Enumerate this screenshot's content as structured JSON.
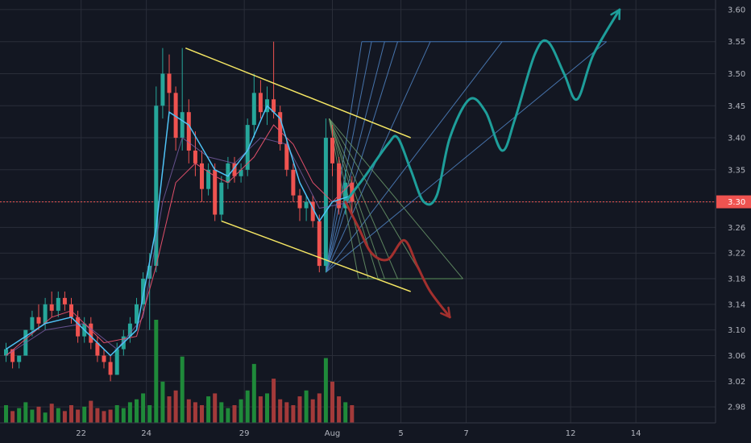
{
  "chart_data": {
    "type": "candlestick",
    "title": "",
    "xlabel": "",
    "ylabel": "",
    "ylim": [
      2.955,
      3.615
    ],
    "x_ticks": [
      "22",
      "24",
      "29",
      "Aug",
      "5",
      "7",
      "12",
      "14"
    ],
    "y_ticks": [
      "2.98",
      "3.02",
      "3.06",
      "3.10",
      "3.14",
      "3.18",
      "3.22",
      "3.26",
      "3.30",
      "3.35",
      "3.40",
      "3.45",
      "3.50",
      "3.55",
      "3.60"
    ],
    "grid": true,
    "current_price": {
      "label": "3.30",
      "value": 3.3
    },
    "candles": [
      [
        3.06,
        3.08,
        3.05,
        3.07
      ],
      [
        3.07,
        3.07,
        3.04,
        3.05
      ],
      [
        3.05,
        3.06,
        3.04,
        3.06
      ],
      [
        3.06,
        3.1,
        3.06,
        3.1
      ],
      [
        3.1,
        3.13,
        3.09,
        3.12
      ],
      [
        3.12,
        3.14,
        3.1,
        3.11
      ],
      [
        3.11,
        3.15,
        3.1,
        3.14
      ],
      [
        3.14,
        3.16,
        3.12,
        3.13
      ],
      [
        3.13,
        3.16,
        3.12,
        3.15
      ],
      [
        3.15,
        3.16,
        3.13,
        3.14
      ],
      [
        3.14,
        3.15,
        3.11,
        3.12
      ],
      [
        3.12,
        3.13,
        3.08,
        3.09
      ],
      [
        3.09,
        3.12,
        3.08,
        3.11
      ],
      [
        3.11,
        3.12,
        3.07,
        3.08
      ],
      [
        3.08,
        3.09,
        3.05,
        3.06
      ],
      [
        3.06,
        3.07,
        3.04,
        3.05
      ],
      [
        3.05,
        3.06,
        3.02,
        3.03
      ],
      [
        3.03,
        3.08,
        3.03,
        3.07
      ],
      [
        3.07,
        3.1,
        3.06,
        3.09
      ],
      [
        3.09,
        3.12,
        3.08,
        3.11
      ],
      [
        3.11,
        3.15,
        3.1,
        3.14
      ],
      [
        3.14,
        3.19,
        3.13,
        3.18
      ],
      [
        3.18,
        3.22,
        3.1,
        3.2
      ],
      [
        3.2,
        3.48,
        3.19,
        3.45
      ],
      [
        3.45,
        3.54,
        3.43,
        3.5
      ],
      [
        3.5,
        3.53,
        3.44,
        3.47
      ],
      [
        3.47,
        3.48,
        3.38,
        3.4
      ],
      [
        3.4,
        3.54,
        3.38,
        3.44
      ],
      [
        3.44,
        3.46,
        3.36,
        3.38
      ],
      [
        3.38,
        3.41,
        3.34,
        3.36
      ],
      [
        3.36,
        3.38,
        3.3,
        3.32
      ],
      [
        3.32,
        3.36,
        3.31,
        3.35
      ],
      [
        3.35,
        3.36,
        3.27,
        3.28
      ],
      [
        3.28,
        3.34,
        3.27,
        3.33
      ],
      [
        3.33,
        3.37,
        3.32,
        3.36
      ],
      [
        3.36,
        3.37,
        3.33,
        3.34
      ],
      [
        3.34,
        3.36,
        3.33,
        3.35
      ],
      [
        3.35,
        3.43,
        3.34,
        3.42
      ],
      [
        3.42,
        3.5,
        3.4,
        3.47
      ],
      [
        3.47,
        3.49,
        3.43,
        3.44
      ],
      [
        3.44,
        3.48,
        3.42,
        3.46
      ],
      [
        3.46,
        3.55,
        3.43,
        3.44
      ],
      [
        3.44,
        3.45,
        3.38,
        3.39
      ],
      [
        3.39,
        3.4,
        3.34,
        3.35
      ],
      [
        3.35,
        3.36,
        3.3,
        3.31
      ],
      [
        3.31,
        3.32,
        3.27,
        3.29
      ],
      [
        3.29,
        3.31,
        3.27,
        3.3
      ],
      [
        3.3,
        3.31,
        3.26,
        3.27
      ],
      [
        3.27,
        3.28,
        3.19,
        3.2
      ],
      [
        3.2,
        3.43,
        3.19,
        3.4
      ],
      [
        3.4,
        3.42,
        3.34,
        3.36
      ],
      [
        3.36,
        3.37,
        3.28,
        3.29
      ],
      [
        3.29,
        3.35,
        3.28,
        3.33
      ],
      [
        3.33,
        3.34,
        3.28,
        3.3
      ]
    ],
    "volumes": [
      12,
      8,
      10,
      14,
      9,
      11,
      7,
      13,
      10,
      8,
      12,
      9,
      11,
      15,
      10,
      8,
      9,
      12,
      10,
      14,
      16,
      20,
      12,
      70,
      28,
      18,
      22,
      45,
      16,
      14,
      12,
      18,
      20,
      14,
      10,
      12,
      16,
      22,
      40,
      18,
      20,
      30,
      16,
      14,
      12,
      18,
      22,
      16,
      20,
      44,
      28,
      18,
      14,
      12
    ],
    "ma_fast": [
      [
        0,
        3.07
      ],
      [
        6,
        3.11
      ],
      [
        10,
        3.12
      ],
      [
        16,
        3.06
      ],
      [
        20,
        3.1
      ],
      [
        23,
        3.26
      ],
      [
        25,
        3.44
      ],
      [
        28,
        3.42
      ],
      [
        32,
        3.35
      ],
      [
        34,
        3.34
      ],
      [
        37,
        3.38
      ],
      [
        40,
        3.45
      ],
      [
        42,
        3.43
      ],
      [
        45,
        3.33
      ],
      [
        48,
        3.27
      ],
      [
        50,
        3.3
      ],
      [
        53,
        3.31
      ]
    ],
    "ma_slow": [
      [
        0,
        3.06
      ],
      [
        7,
        3.12
      ],
      [
        10,
        3.13
      ],
      [
        15,
        3.08
      ],
      [
        20,
        3.09
      ],
      [
        23,
        3.2
      ],
      [
        26,
        3.33
      ],
      [
        29,
        3.36
      ],
      [
        32,
        3.34
      ],
      [
        34,
        3.33
      ],
      [
        38,
        3.37
      ],
      [
        41,
        3.42
      ],
      [
        44,
        3.39
      ],
      [
        47,
        3.33
      ],
      [
        50,
        3.3
      ],
      [
        53,
        3.33
      ]
    ],
    "ma_light": [
      [
        0,
        3.06
      ],
      [
        6,
        3.1
      ],
      [
        12,
        3.11
      ],
      [
        17,
        3.07
      ],
      [
        21,
        3.12
      ],
      [
        24,
        3.3
      ],
      [
        27,
        3.4
      ],
      [
        31,
        3.37
      ],
      [
        35,
        3.36
      ],
      [
        39,
        3.4
      ],
      [
        43,
        3.39
      ],
      [
        48,
        3.29
      ],
      [
        53,
        3.3
      ]
    ],
    "channel_upper": [
      [
        27.5,
        3.54
      ],
      [
        62,
        3.4
      ]
    ],
    "channel_lower": [
      [
        33,
        3.27
      ],
      [
        62,
        3.16
      ]
    ],
    "forecast_up": [
      [
        52,
        3.3
      ],
      [
        55,
        3.34
      ],
      [
        58.5,
        3.39
      ],
      [
        60,
        3.4
      ],
      [
        62,
        3.35
      ],
      [
        64,
        3.3
      ],
      [
        66,
        3.31
      ],
      [
        68,
        3.4
      ],
      [
        71,
        3.46
      ],
      [
        73.5,
        3.44
      ],
      [
        76,
        3.38
      ],
      [
        78,
        3.43
      ],
      [
        81,
        3.53
      ],
      [
        83,
        3.55
      ],
      [
        85.5,
        3.5
      ],
      [
        87.5,
        3.46
      ],
      [
        90,
        3.53
      ],
      [
        94,
        3.6
      ]
    ],
    "forecast_down": [
      [
        52,
        3.3
      ],
      [
        54,
        3.26
      ],
      [
        56,
        3.22
      ],
      [
        58.5,
        3.21
      ],
      [
        61,
        3.24
      ],
      [
        63,
        3.2
      ],
      [
        65,
        3.16
      ],
      [
        68,
        3.12
      ]
    ],
    "fan_upper": {
      "origin": [
        49,
        3.19
      ],
      "y": 3.55,
      "targets": [
        54.5,
        56,
        58,
        60,
        65,
        76,
        92
      ],
      "end": 92
    },
    "fan_lower": {
      "origin": [
        49.5,
        3.43
      ],
      "y": 3.18,
      "targets": [
        54,
        55.5,
        57,
        58,
        60,
        64,
        70
      ],
      "end": 70
    }
  }
}
